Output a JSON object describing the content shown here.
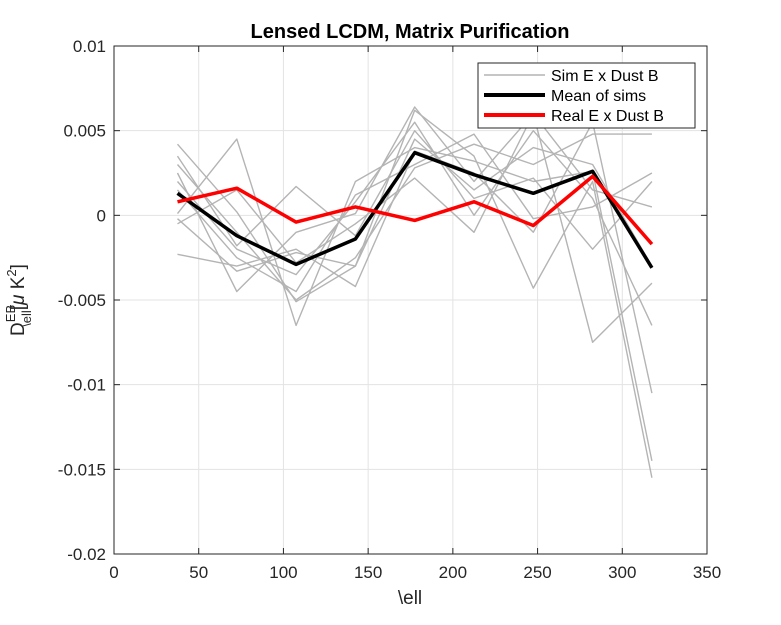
{
  "chart_data": {
    "type": "line",
    "title": "Lensed LCDM, Matrix Purification",
    "xlabel": "\\ell",
    "ylabel": {
      "base": "D",
      "sup": "EB",
      "sub": "\\ell",
      "rest_open": "[",
      "mu": "μ",
      "unit": " K",
      "unit_sup": "2",
      "rest_close": "]"
    },
    "xlim": [
      0,
      350
    ],
    "ylim": [
      -0.02,
      0.01
    ],
    "xticks": [
      0,
      50,
      100,
      150,
      200,
      250,
      300,
      350
    ],
    "yticks": [
      -0.02,
      -0.015,
      -0.01,
      -0.005,
      0,
      0.005,
      0.01
    ],
    "xtick_labels": [
      "0",
      "50",
      "100",
      "150",
      "200",
      "250",
      "300",
      "350"
    ],
    "ytick_labels": [
      "-0.02",
      "-0.015",
      "-0.01",
      "-0.005",
      "0",
      "0.005",
      "0.01"
    ],
    "grid": true,
    "legend_position": "top-right",
    "x": [
      37.5,
      72.5,
      107.5,
      142.5,
      177.5,
      212.5,
      247.5,
      282.5,
      317.5
    ],
    "sim_color": "#b4b4b4",
    "mean_color": "#000000",
    "real_color": "#ff0000",
    "legend": [
      {
        "label": "Sim E x Dust B",
        "series": "sim"
      },
      {
        "label": "Mean of sims",
        "series": "mean"
      },
      {
        "label": "Real E x Dust B",
        "series": "real"
      }
    ],
    "sims": [
      [
        0.0042,
        0.0002,
        -0.0051,
        -0.003,
        0.0062,
        0.0035,
        -0.0043,
        0.002,
        -0.0155
      ],
      [
        0.0025,
        -0.0045,
        -0.001,
        0.0001,
        0.0064,
        0.002,
        0.006,
        -0.0075,
        -0.004
      ],
      [
        0.0001,
        0.0045,
        -0.0065,
        0.002,
        0.004,
        0.0032,
        0.002,
        0.0026,
        -0.0145
      ],
      [
        -0.0023,
        -0.003,
        -0.002,
        -0.0042,
        0.0038,
        0.0025,
        -0.001,
        0.0055,
        -0.0105
      ],
      [
        0.002,
        -0.002,
        -0.0035,
        0.0008,
        0.0055,
        0.0,
        0.005,
        0.001,
        -0.0065
      ],
      [
        0.003,
        -0.001,
        -0.005,
        -0.0025,
        0.0028,
        0.0042,
        0.003,
        0.0048,
        0.0048
      ],
      [
        0.0035,
        -0.0018,
        0.0017,
        -0.0012,
        0.005,
        0.001,
        0.0022,
        -0.002,
        0.002
      ],
      [
        -0.0005,
        0.0015,
        -0.0028,
        -0.0005,
        0.0022,
        -0.001,
        0.006,
        0.0015,
        0.0005
      ],
      [
        0.0015,
        -0.0025,
        -0.0045,
        0.0012,
        0.003,
        0.0048,
        -0.0002,
        0.0005,
        0.0025
      ],
      [
        -0.0002,
        -0.0033,
        -0.0022,
        -0.003,
        0.0045,
        0.0015,
        0.004,
        0.003,
        -0.003
      ]
    ],
    "series": [
      {
        "name": "Mean of sims",
        "values": [
          0.0013,
          -0.0012,
          -0.0029,
          -0.0014,
          0.0037,
          0.0024,
          0.0013,
          0.0026,
          -0.0031
        ]
      },
      {
        "name": "Real E x Dust B",
        "values": [
          0.0008,
          0.0016,
          -0.0004,
          0.0005,
          -0.0003,
          0.0008,
          -0.0006,
          0.0023,
          -0.0017
        ]
      }
    ]
  }
}
